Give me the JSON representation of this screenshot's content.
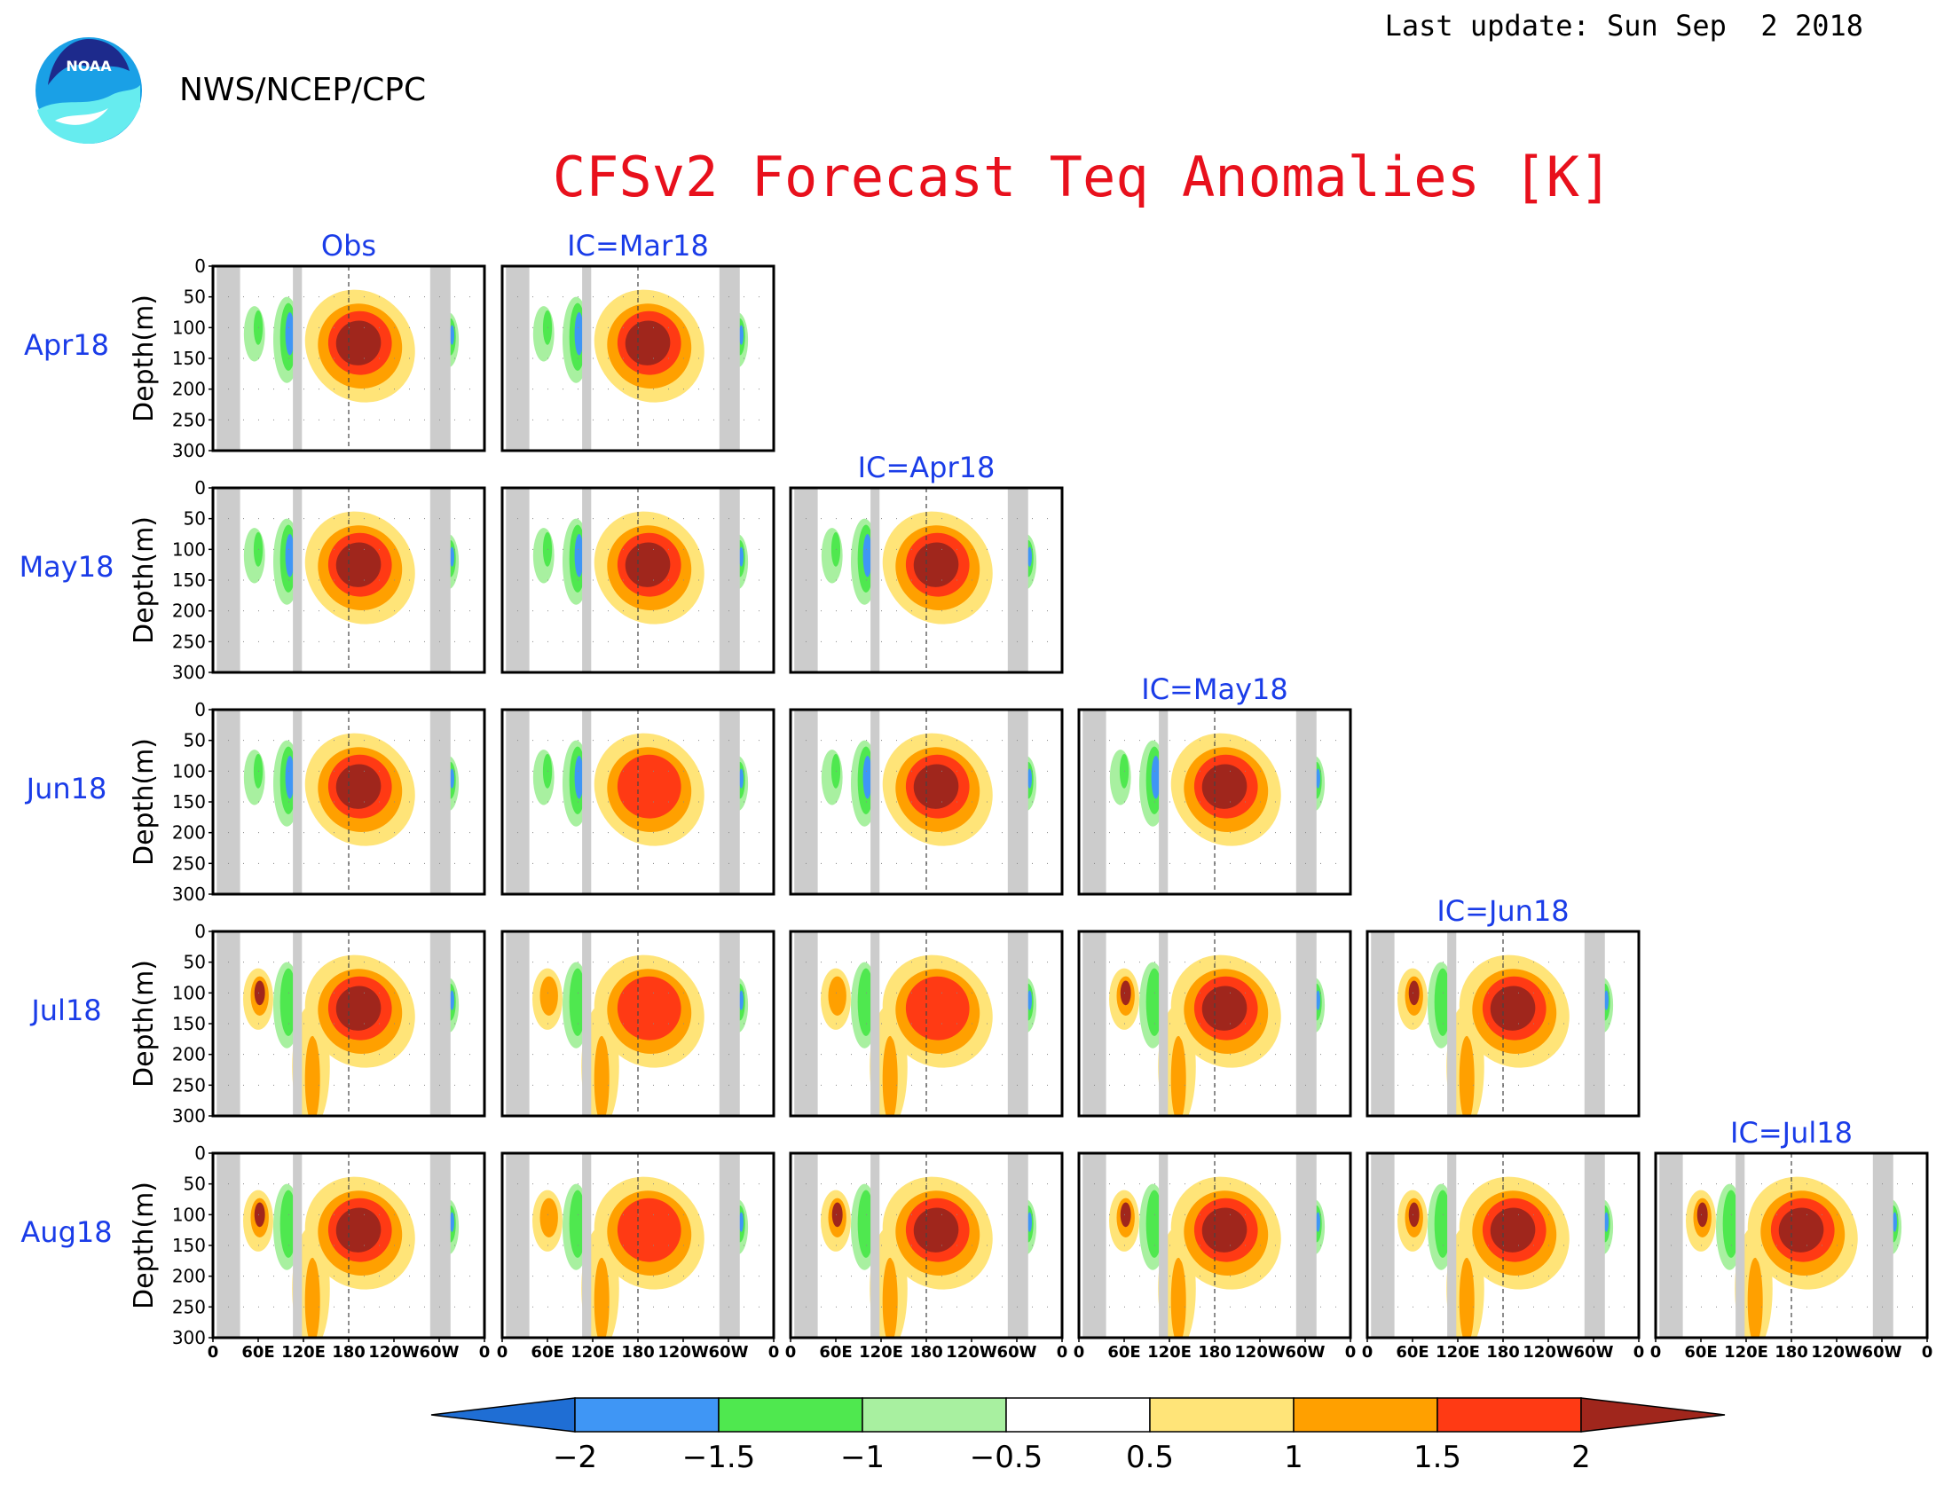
{
  "header": {
    "last_update": "Last update: Sun Sep  2 2018",
    "agency": "NWS/NCEP/CPC",
    "logo_text": "NOAA"
  },
  "chart_data": {
    "type": "heatmap",
    "title": "CFSv2 Forecast Teq Anomalies [K]",
    "ylabel": "Depth(m)",
    "y_ticks": [
      "0",
      "50",
      "100",
      "150",
      "200",
      "250",
      "300"
    ],
    "ylim": [
      300,
      0
    ],
    "x_ticks": [
      "0",
      "60E",
      "120E",
      "180",
      "120W",
      "60W",
      "0"
    ],
    "rows": [
      "Apr18",
      "May18",
      "Jun18",
      "Jul18",
      "Aug18"
    ],
    "columns": [
      "Obs",
      "IC=Mar18",
      "IC=Apr18",
      "IC=May18",
      "IC=Jun18",
      "IC=Jul18"
    ],
    "colorbar": {
      "levels": [
        "−2",
        "−1.5",
        "−1",
        "−0.5",
        "0.5",
        "1",
        "1.5",
        "2"
      ],
      "colors": [
        "#1f6ed4",
        "#3f96f5",
        "#4fe84f",
        "#a8f0a0",
        "#ffffff",
        "#ffe478",
        "#ffa000",
        "#ff3a14",
        "#a0261c"
      ]
    },
    "colors": {
      "title": "#e8101c",
      "labels": "#1a3ce8",
      "land_mask": "#cccccc"
    }
  }
}
